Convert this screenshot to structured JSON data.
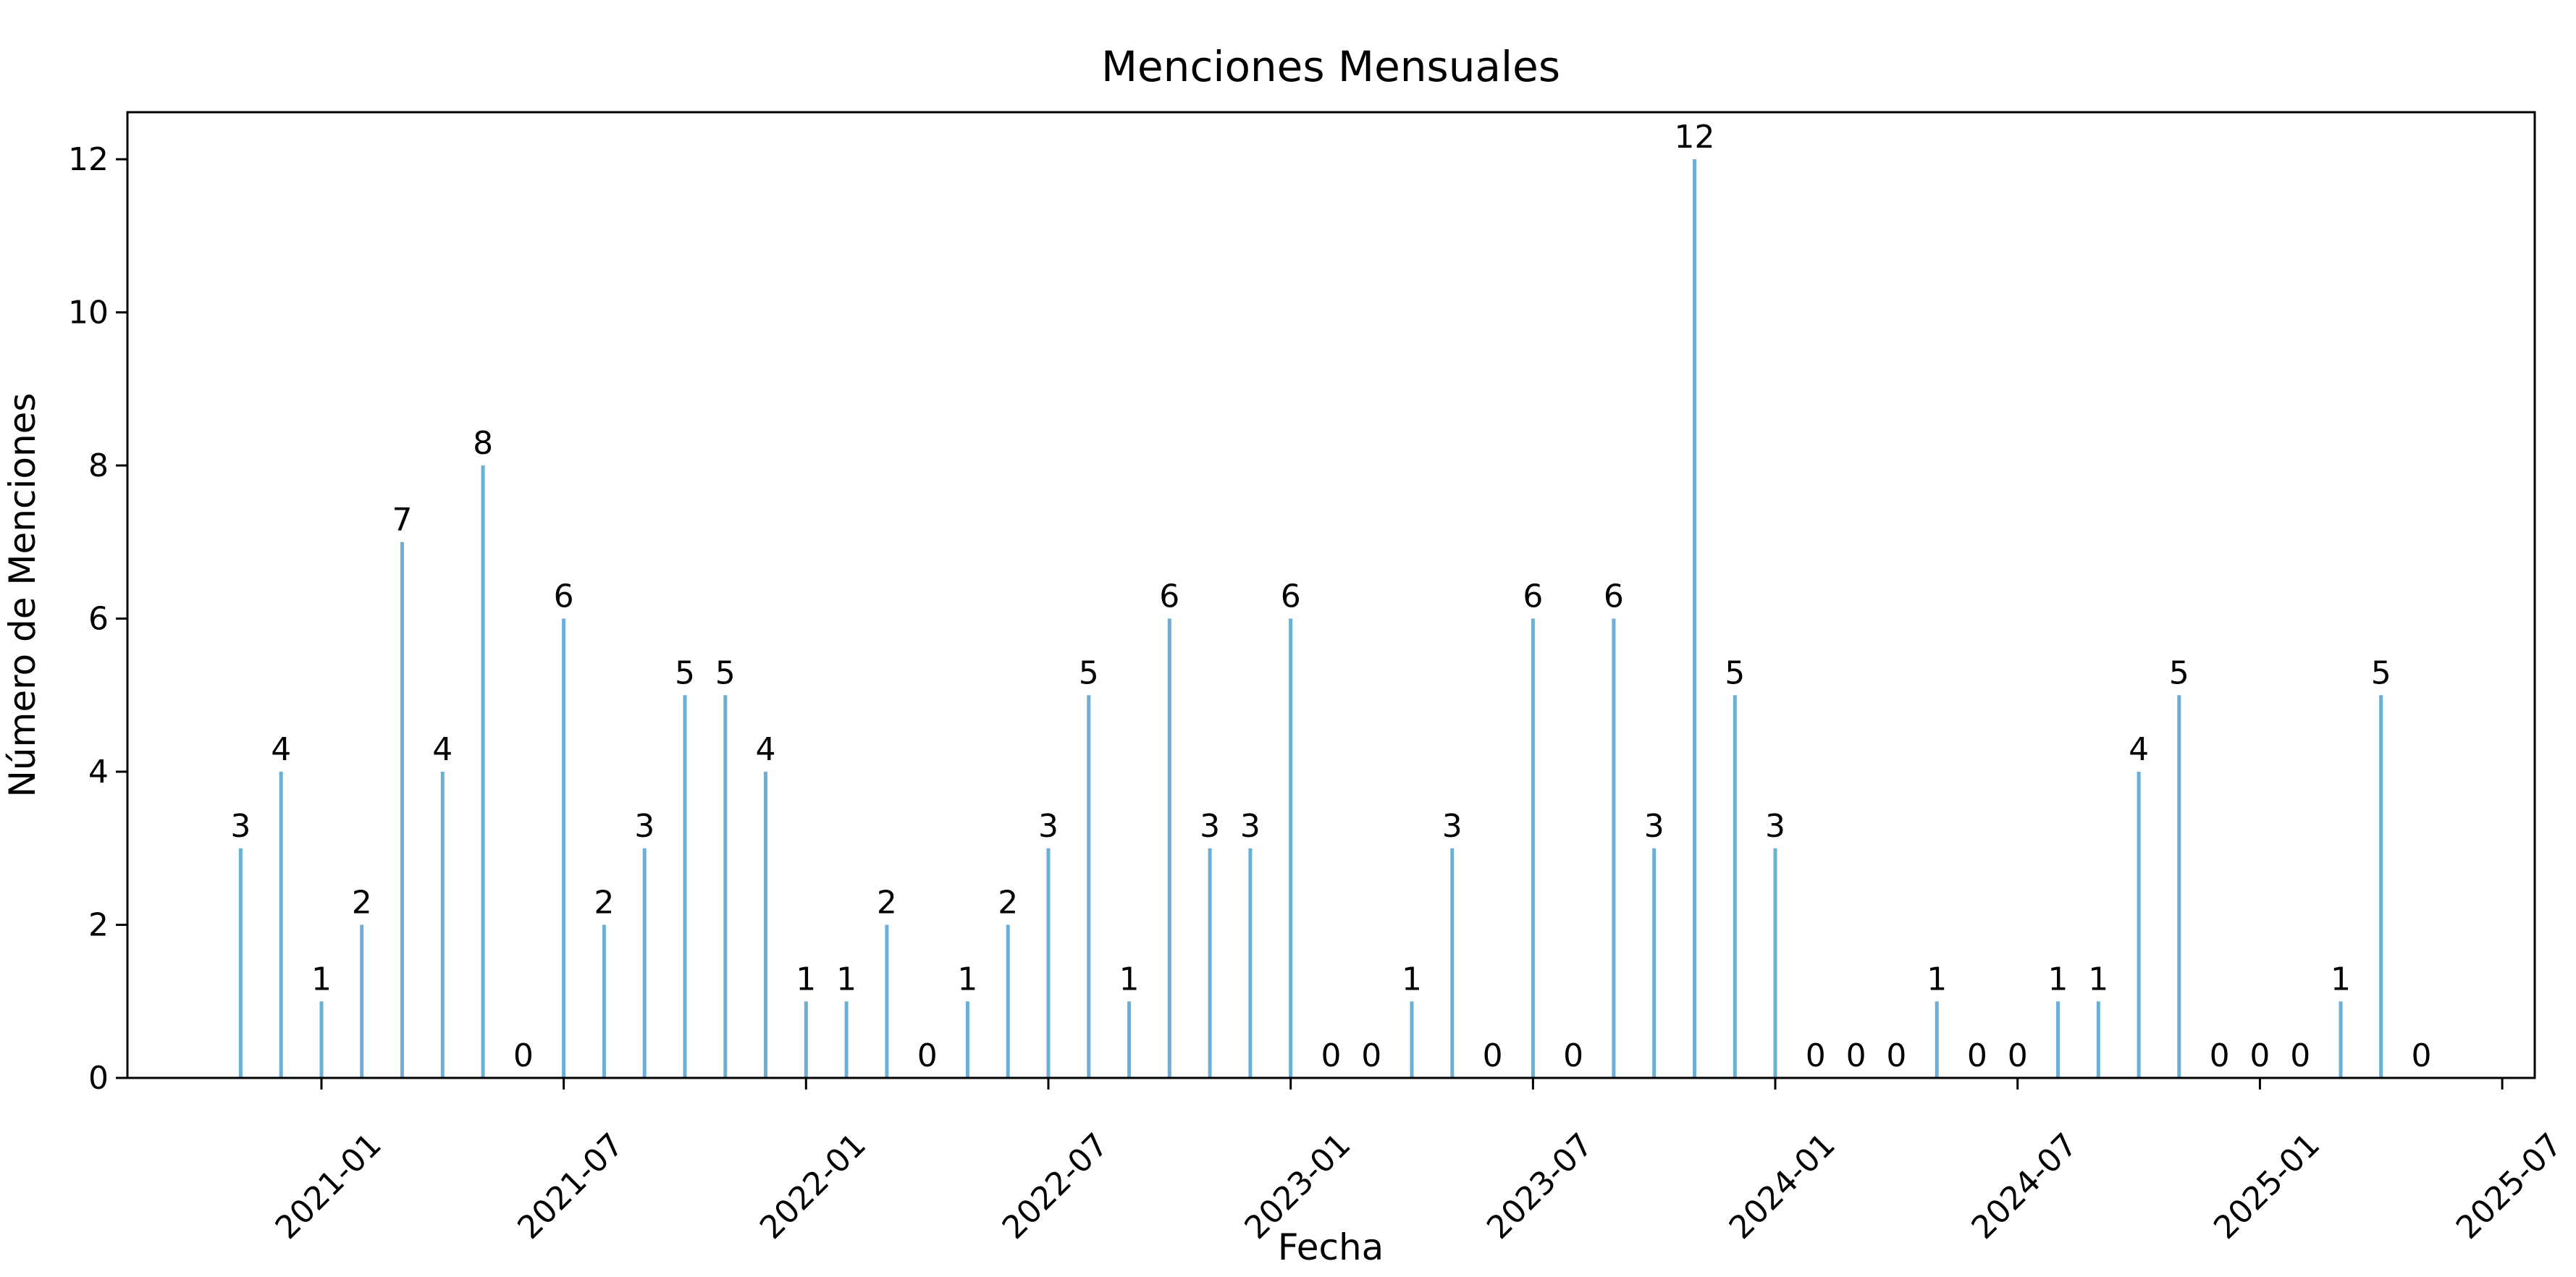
{
  "chart_data": {
    "type": "bar",
    "title": "Menciones Mensuales",
    "xlabel": "Fecha",
    "ylabel": "Número de Menciones",
    "categories": [
      "2020-11",
      "2020-12",
      "2021-01",
      "2021-02",
      "2021-03",
      "2021-04",
      "2021-05",
      "2021-06",
      "2021-07",
      "2021-08",
      "2021-09",
      "2021-10",
      "2021-11",
      "2021-12",
      "2022-01",
      "2022-02",
      "2022-03",
      "2022-04",
      "2022-05",
      "2022-06",
      "2022-07",
      "2022-08",
      "2022-09",
      "2022-10",
      "2022-11",
      "2022-12",
      "2023-01",
      "2023-02",
      "2023-03",
      "2023-04",
      "2023-05",
      "2023-06",
      "2023-07",
      "2023-08",
      "2023-09",
      "2023-10",
      "2023-11",
      "2023-12",
      "2024-01",
      "2024-02",
      "2024-03",
      "2024-04",
      "2024-05",
      "2024-06",
      "2024-07",
      "2024-08",
      "2024-09",
      "2024-10",
      "2024-11",
      "2024-12",
      "2025-01",
      "2025-02",
      "2025-03",
      "2025-04",
      "2025-05"
    ],
    "values": [
      3,
      4,
      1,
      2,
      7,
      4,
      8,
      0,
      6,
      2,
      3,
      5,
      5,
      4,
      1,
      1,
      2,
      0,
      1,
      2,
      3,
      5,
      1,
      6,
      3,
      3,
      6,
      0,
      0,
      1,
      3,
      0,
      6,
      0,
      6,
      3,
      12,
      5,
      3,
      0,
      0,
      0,
      1,
      0,
      0,
      1,
      1,
      4,
      5,
      0,
      0,
      0,
      1,
      5,
      0
    ],
    "value_labels_shown": true,
    "x_tick_labels": [
      "2021-01",
      "2021-07",
      "2022-01",
      "2022-07",
      "2023-01",
      "2023-07",
      "2024-01",
      "2024-07",
      "2025-01",
      "2025-07"
    ],
    "y_tick_labels": [
      "0",
      "2",
      "4",
      "6",
      "8",
      "10",
      "12"
    ],
    "y_ticks": [
      0,
      2,
      4,
      6,
      8,
      10,
      12
    ],
    "ylim": [
      0,
      12.6
    ],
    "grid": false,
    "legend": null,
    "styles": {
      "bar_color": "#6baed6",
      "axis_color": "#000000",
      "text_color": "#000000",
      "background_color": "#ffffff"
    }
  }
}
